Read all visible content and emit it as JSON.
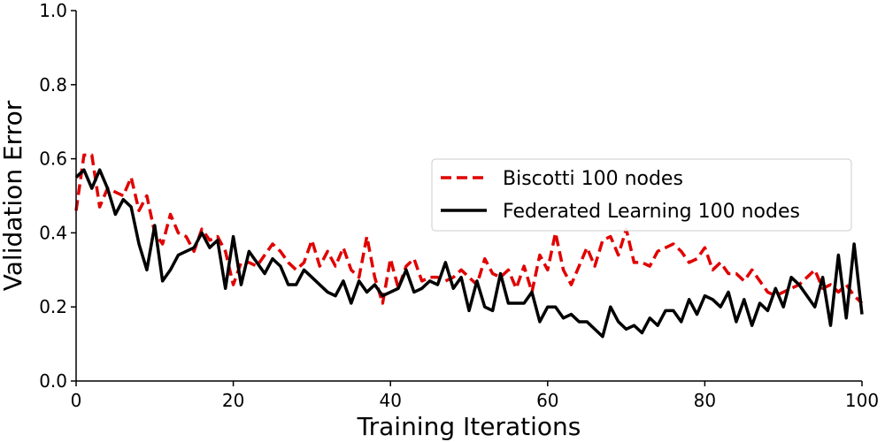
{
  "chart_data": {
    "type": "line",
    "title": "",
    "xlabel": "Training Iterations",
    "ylabel": "Validation Error",
    "xlim": [
      0,
      100
    ],
    "ylim": [
      0.0,
      1.0
    ],
    "x_ticks": [
      0,
      20,
      40,
      60,
      80,
      100
    ],
    "x_tick_labels": [
      "0",
      "20",
      "40",
      "60",
      "80",
      "100"
    ],
    "y_ticks": [
      0.0,
      0.2,
      0.4,
      0.6,
      0.8,
      1.0
    ],
    "y_tick_labels": [
      "0.0",
      "0.2",
      "0.4",
      "0.6",
      "0.8",
      "1.0"
    ],
    "grid": false,
    "legend_position": "center-right",
    "series": [
      {
        "name": "Biscotti 100 nodes",
        "color": "#e00000",
        "line_style": "dashed",
        "values": [
          0.46,
          0.61,
          0.61,
          0.47,
          0.52,
          0.51,
          0.5,
          0.55,
          0.46,
          0.5,
          0.4,
          0.37,
          0.45,
          0.4,
          0.39,
          0.35,
          0.41,
          0.38,
          0.39,
          0.35,
          0.26,
          0.32,
          0.32,
          0.31,
          0.34,
          0.37,
          0.35,
          0.32,
          0.3,
          0.32,
          0.38,
          0.31,
          0.35,
          0.31,
          0.36,
          0.3,
          0.28,
          0.39,
          0.28,
          0.21,
          0.33,
          0.25,
          0.31,
          0.33,
          0.27,
          0.28,
          0.28,
          0.27,
          0.28,
          0.3,
          0.28,
          0.26,
          0.33,
          0.29,
          0.28,
          0.3,
          0.25,
          0.31,
          0.24,
          0.34,
          0.3,
          0.4,
          0.3,
          0.26,
          0.31,
          0.36,
          0.31,
          0.38,
          0.39,
          0.34,
          0.41,
          0.32,
          0.32,
          0.31,
          0.35,
          0.36,
          0.37,
          0.35,
          0.32,
          0.33,
          0.36,
          0.3,
          0.32,
          0.29,
          0.29,
          0.27,
          0.3,
          0.27,
          0.24,
          0.23,
          0.24,
          0.25,
          0.26,
          0.28,
          0.3,
          0.25,
          0.26,
          0.24,
          0.26,
          0.23,
          0.21
        ]
      },
      {
        "name": "Federated Learning 100 nodes",
        "color": "#000000",
        "line_style": "solid",
        "values": [
          0.55,
          0.57,
          0.52,
          0.57,
          0.52,
          0.45,
          0.49,
          0.47,
          0.37,
          0.3,
          0.42,
          0.27,
          0.3,
          0.34,
          0.35,
          0.36,
          0.4,
          0.36,
          0.38,
          0.25,
          0.39,
          0.26,
          0.35,
          0.32,
          0.29,
          0.33,
          0.31,
          0.26,
          0.26,
          0.3,
          0.28,
          0.26,
          0.24,
          0.23,
          0.27,
          0.21,
          0.27,
          0.24,
          0.26,
          0.23,
          0.24,
          0.25,
          0.3,
          0.24,
          0.25,
          0.27,
          0.26,
          0.32,
          0.25,
          0.28,
          0.19,
          0.27,
          0.2,
          0.19,
          0.29,
          0.21,
          0.21,
          0.21,
          0.24,
          0.16,
          0.2,
          0.2,
          0.17,
          0.18,
          0.16,
          0.16,
          0.14,
          0.12,
          0.2,
          0.16,
          0.14,
          0.15,
          0.13,
          0.17,
          0.15,
          0.19,
          0.19,
          0.16,
          0.22,
          0.18,
          0.23,
          0.22,
          0.2,
          0.24,
          0.16,
          0.22,
          0.15,
          0.21,
          0.19,
          0.25,
          0.2,
          0.28,
          0.26,
          0.23,
          0.2,
          0.28,
          0.15,
          0.34,
          0.17,
          0.37,
          0.18
        ]
      }
    ]
  }
}
